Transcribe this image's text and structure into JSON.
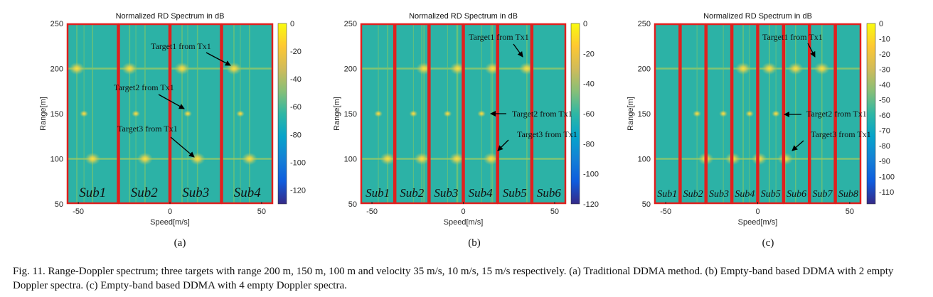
{
  "figure": {
    "caption": "Fig. 11.   Range-Doppler spectrum; three targets with range 200 m, 150 m, 100 m and velocity 35 m/s, 10 m/s, 15 m/s respectively. (a) Traditional DDMA method. (b) Empty-band based DDMA with 2 empty Doppler spectra. (c) Empty-band based DDMA with 4 empty Doppler spectra."
  },
  "chart_data": [
    {
      "type": "heatmap",
      "panel_label": "(a)",
      "title": "Normalized RD Spectrum in dB",
      "xlabel": "Speed[m/s]",
      "ylabel": "Range[m]",
      "xlim": [
        -56.25,
        56.25
      ],
      "ylim": [
        50,
        250
      ],
      "xticks": [
        -50,
        0,
        50
      ],
      "yticks": [
        50,
        100,
        150,
        200,
        250
      ],
      "colorbar": {
        "range": [
          -130,
          0
        ],
        "ticks": [
          0,
          -20,
          -40,
          -60,
          -80,
          -100,
          -120
        ]
      },
      "subbands": [
        "Sub1",
        "Sub2",
        "Sub3",
        "Sub4"
      ],
      "peaks": [
        {
          "range": 200,
          "speeds": [
            -50.8,
            -22,
            6.6,
            34.9
          ]
        },
        {
          "range": 150,
          "speeds": [
            -46.9,
            -18.6,
            9.7,
            38.4
          ]
        },
        {
          "range": 100,
          "speeds": [
            -42.2,
            -13.6,
            15,
            43.4
          ]
        }
      ],
      "annotations": [
        "Target1 from Tx1",
        "Target2 from Tx1",
        "Target3 from Tx1"
      ]
    },
    {
      "type": "heatmap",
      "panel_label": "(b)",
      "title": "Normalized RD Spectrum in dB",
      "xlabel": "Speed[m/s]",
      "ylabel": "Range[m]",
      "xlim": [
        -56.25,
        56.25
      ],
      "ylim": [
        50,
        250
      ],
      "xticks": [
        -50,
        0,
        50
      ],
      "yticks": [
        50,
        100,
        150,
        200,
        250
      ],
      "colorbar": {
        "range": [
          -120,
          0
        ],
        "ticks": [
          0,
          -20,
          -40,
          -60,
          -80,
          -100,
          -120
        ]
      },
      "subbands": [
        "Sub1",
        "Sub2",
        "Sub3",
        "Sub4",
        "Sub5",
        "Sub6"
      ],
      "peaks": [
        {
          "range": 200,
          "speeds": [
            -21.5,
            -3.1,
            16,
            34.8
          ]
        },
        {
          "range": 150,
          "speeds": [
            -46.5,
            -27.3,
            -8.6,
            10
          ]
        },
        {
          "range": 100,
          "speeds": [
            -41.4,
            -22.7,
            -3.5,
            15.2
          ]
        }
      ],
      "annotations": [
        "Target1 from Tx1",
        "Target2 from Tx1",
        "Target3 from Tx1"
      ]
    },
    {
      "type": "heatmap",
      "panel_label": "(c)",
      "title": "Normalized RD Spectrum in dB",
      "xlabel": "Speed[m/s]",
      "ylabel": "Range[m]",
      "xlim": [
        -56.25,
        56.25
      ],
      "ylim": [
        50,
        250
      ],
      "xticks": [
        -50,
        0,
        50
      ],
      "yticks": [
        50,
        100,
        150,
        200,
        250
      ],
      "colorbar": {
        "range": [
          -118,
          0
        ],
        "ticks": [
          0,
          -10,
          -20,
          -30,
          -40,
          -50,
          -60,
          -70,
          -80,
          -90,
          -100,
          -110
        ]
      },
      "subbands": [
        "Sub1",
        "Sub2",
        "Sub3",
        "Sub4",
        "Sub5",
        "Sub6",
        "Sub7",
        "Sub8"
      ],
      "peaks": [
        {
          "range": 200,
          "speeds": [
            -7.9,
            6.3,
            20.6,
            34.9
          ]
        },
        {
          "range": 150,
          "speeds": [
            -33,
            -18.7,
            -4.4,
            9.9
          ]
        },
        {
          "range": 100,
          "speeds": [
            -28.2,
            -13.5,
            0.8,
            15
          ]
        }
      ],
      "annotations": [
        "Target1 from Tx1",
        "Target2 from Tx1",
        "Target3 from Tx1"
      ]
    }
  ],
  "colors": {
    "background": "#2cb2a6",
    "subband_border": "#e0201e",
    "peak": "#f7e23a",
    "colormap": [
      "#f9fb0e",
      "#fec832",
      "#d1bb59",
      "#87bf77",
      "#2eb7a4",
      "#06a4ca",
      "#1481d6",
      "#0f5cdd",
      "#352a87"
    ]
  }
}
